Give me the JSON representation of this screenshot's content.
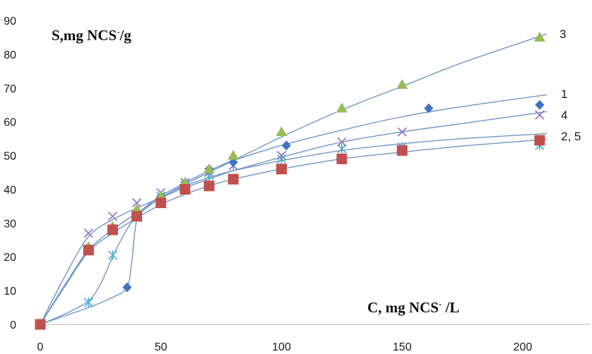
{
  "chart_data": {
    "type": "scatter",
    "ylabel_parts": [
      "S,mg NCS",
      "-",
      "/g"
    ],
    "xlabel_parts": [
      "C, mg NCS",
      "-",
      " /L"
    ],
    "xlim": [
      0,
      210
    ],
    "ylim": [
      0,
      90
    ],
    "x_ticks": [
      "0",
      "50",
      "100",
      "150",
      "200"
    ],
    "y_ticks": [
      "0",
      "10",
      "20",
      "30",
      "40",
      "50",
      "60",
      "70",
      "80",
      "90"
    ],
    "grid": false,
    "colors": {
      "curve": "#6f96c8",
      "series1": "#3f74c2",
      "series2": "#c0504d",
      "series3": "#9bbb59",
      "series4": "#8e7cc3",
      "series5": "#4bacc6"
    },
    "series": [
      {
        "name": "1",
        "marker": "diamond",
        "points": [
          [
            0,
            0
          ],
          [
            36,
            11
          ],
          [
            40,
            32
          ],
          [
            50,
            38
          ],
          [
            60,
            42
          ],
          [
            70,
            46
          ],
          [
            80,
            48
          ],
          [
            102,
            53
          ],
          [
            161,
            64
          ],
          [
            207,
            65
          ]
        ],
        "curve": [
          [
            0,
            0
          ],
          [
            10,
            2.5
          ],
          [
            20,
            5
          ],
          [
            30,
            8
          ],
          [
            36,
            11
          ],
          [
            38,
            19
          ],
          [
            40,
            31
          ],
          [
            44,
            35
          ],
          [
            50,
            38
          ],
          [
            60,
            42
          ],
          [
            70,
            45.5
          ],
          [
            80,
            48.5
          ],
          [
            100,
            53
          ],
          [
            125,
            57.5
          ],
          [
            150,
            61.5
          ],
          [
            175,
            64.5
          ],
          [
            210,
            68
          ]
        ]
      },
      {
        "name": "2",
        "marker": "square",
        "points": [
          [
            0,
            0
          ],
          [
            20,
            22
          ],
          [
            30,
            28
          ],
          [
            40,
            32
          ],
          [
            50,
            36
          ],
          [
            60,
            40
          ],
          [
            70,
            41
          ],
          [
            80,
            43
          ],
          [
            100,
            46
          ],
          [
            125,
            49
          ],
          [
            150,
            51.5
          ],
          [
            207,
            54.5
          ]
        ],
        "curve": [
          [
            0,
            0
          ],
          [
            10,
            11
          ],
          [
            20,
            21.5
          ],
          [
            30,
            27
          ],
          [
            40,
            31.5
          ],
          [
            50,
            35.5
          ],
          [
            60,
            38.5
          ],
          [
            70,
            41
          ],
          [
            80,
            43
          ],
          [
            100,
            46
          ],
          [
            125,
            49
          ],
          [
            150,
            51
          ],
          [
            175,
            52.8
          ],
          [
            210,
            54.8
          ]
        ]
      },
      {
        "name": "3",
        "marker": "triangle",
        "points": [
          [
            0,
            0
          ],
          [
            20,
            23
          ],
          [
            30,
            29
          ],
          [
            40,
            34
          ],
          [
            50,
            38
          ],
          [
            60,
            42
          ],
          [
            70,
            46
          ],
          [
            80,
            50
          ],
          [
            100,
            57
          ],
          [
            125,
            64
          ],
          [
            150,
            71
          ],
          [
            207,
            85
          ]
        ],
        "curve": [
          [
            0,
            0
          ],
          [
            10,
            11.5
          ],
          [
            20,
            22
          ],
          [
            30,
            28
          ],
          [
            40,
            33
          ],
          [
            50,
            37.5
          ],
          [
            60,
            41.5
          ],
          [
            70,
            45
          ],
          [
            80,
            48.5
          ],
          [
            100,
            55.5
          ],
          [
            125,
            63.5
          ],
          [
            150,
            70.5
          ],
          [
            175,
            77.5
          ],
          [
            210,
            86
          ]
        ]
      },
      {
        "name": "4",
        "marker": "x",
        "points": [
          [
            0,
            0
          ],
          [
            20,
            27
          ],
          [
            30,
            32
          ],
          [
            40,
            36
          ],
          [
            50,
            39
          ],
          [
            60,
            42
          ],
          [
            70,
            45
          ],
          [
            80,
            47
          ],
          [
            100,
            50
          ],
          [
            125,
            54
          ],
          [
            150,
            57
          ],
          [
            207,
            62
          ]
        ],
        "curve": [
          [
            0,
            0
          ],
          [
            10,
            14
          ],
          [
            20,
            26
          ],
          [
            30,
            31
          ],
          [
            40,
            34.5
          ],
          [
            50,
            37.5
          ],
          [
            60,
            40.5
          ],
          [
            70,
            43
          ],
          [
            80,
            45.5
          ],
          [
            100,
            49.5
          ],
          [
            125,
            54
          ],
          [
            150,
            57
          ],
          [
            175,
            59.5
          ],
          [
            210,
            63
          ]
        ]
      },
      {
        "name": "5",
        "marker": "asterisk",
        "points": [
          [
            0,
            0
          ],
          [
            20,
            6.5
          ],
          [
            30,
            20.5
          ],
          [
            40,
            32
          ],
          [
            50,
            38
          ],
          [
            60,
            42
          ],
          [
            70,
            44
          ],
          [
            80,
            47
          ],
          [
            100,
            49
          ],
          [
            125,
            52
          ],
          [
            150,
            52.5
          ],
          [
            207,
            53
          ]
        ],
        "curve": [
          [
            0,
            0
          ],
          [
            10,
            3
          ],
          [
            20,
            7
          ],
          [
            25,
            12
          ],
          [
            30,
            20
          ],
          [
            35,
            27
          ],
          [
            40,
            32
          ],
          [
            50,
            37.5
          ],
          [
            60,
            41
          ],
          [
            70,
            43.5
          ],
          [
            80,
            45.5
          ],
          [
            100,
            48.5
          ],
          [
            125,
            51.5
          ],
          [
            150,
            53.5
          ],
          [
            175,
            55
          ],
          [
            210,
            56.5
          ]
        ]
      }
    ],
    "curve_labels": [
      "3",
      "1",
      "4",
      "2, 5"
    ]
  }
}
